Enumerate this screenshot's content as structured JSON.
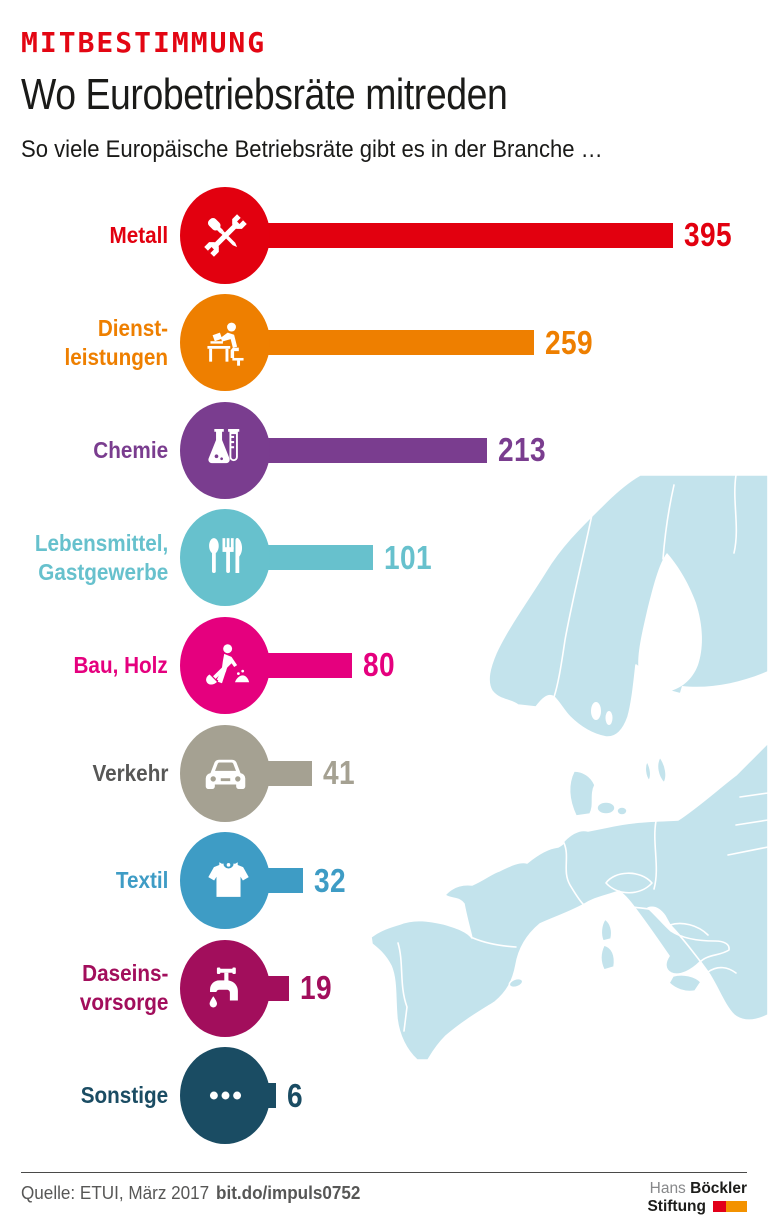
{
  "header": {
    "kicker": "MITBESTIMMUNG",
    "kicker_color": "#e30613",
    "title": "Wo Eurobetriebsräte mitreden",
    "subtitle": "So viele Europäische Betriebsräte gibt es in der Branche …"
  },
  "chart_data": {
    "type": "bar",
    "orientation": "horizontal",
    "title": "Wo Eurobetriebsräte mitreden",
    "subtitle": "So viele Europäische Betriebsräte gibt es in der Branche …",
    "value_range": [
      0,
      395
    ],
    "grid": false,
    "legend": false,
    "categories": [
      "Metall",
      "Dienstleistungen",
      "Chemie",
      "Lebensmittel, Gastgewerbe",
      "Bau, Holz",
      "Verkehr",
      "Textil",
      "Daseinsvorsorge",
      "Sonstige"
    ],
    "values": [
      395,
      259,
      213,
      101,
      80,
      41,
      32,
      19,
      6
    ],
    "rows": [
      {
        "label": "Metall",
        "value": 395,
        "color": "#e2000f",
        "label_color": "#e2000f",
        "icon": "tools-icon"
      },
      {
        "label": "Dienst-\nleistungen",
        "value": 259,
        "color": "#ee7f00",
        "label_color": "#ee7f00",
        "icon": "office-worker-icon"
      },
      {
        "label": "Chemie",
        "value": 213,
        "color": "#7a3d8f",
        "label_color": "#7a3d8f",
        "icon": "chemistry-flask-icon"
      },
      {
        "label": "Lebensmittel,\nGastgewerbe",
        "value": 101,
        "color": "#67c1cd",
        "label_color": "#67c1cd",
        "icon": "cutlery-icon"
      },
      {
        "label": "Bau, Holz",
        "value": 80,
        "color": "#e5007e",
        "label_color": "#e5007e",
        "icon": "construction-worker-icon"
      },
      {
        "label": "Verkehr",
        "value": 41,
        "color": "#a5a192",
        "label_color": "#575756",
        "icon": "car-icon"
      },
      {
        "label": "Textil",
        "value": 32,
        "color": "#3e9cc5",
        "label_color": "#3e9cc5",
        "icon": "sweater-icon"
      },
      {
        "label": "Daseins-\nvorsorge",
        "value": 19,
        "color": "#a20e5c",
        "label_color": "#a20e5c",
        "icon": "faucet-icon"
      },
      {
        "label": "Sonstige",
        "value": 6,
        "color": "#1a4c63",
        "label_color": "#1a4c63",
        "icon": "ellipsis-icon"
      }
    ],
    "background_map": "europe",
    "map_color": "#c3e3ec"
  },
  "footer": {
    "source": "Quelle: ETUI, März 2017",
    "link": "bit.do/impuls0752",
    "logo": {
      "name_light": "Hans",
      "name_bold": "Böckler",
      "line2_bold": "Stiftung",
      "accent_red": "#e2001a",
      "accent_orange": "#f39200"
    }
  }
}
